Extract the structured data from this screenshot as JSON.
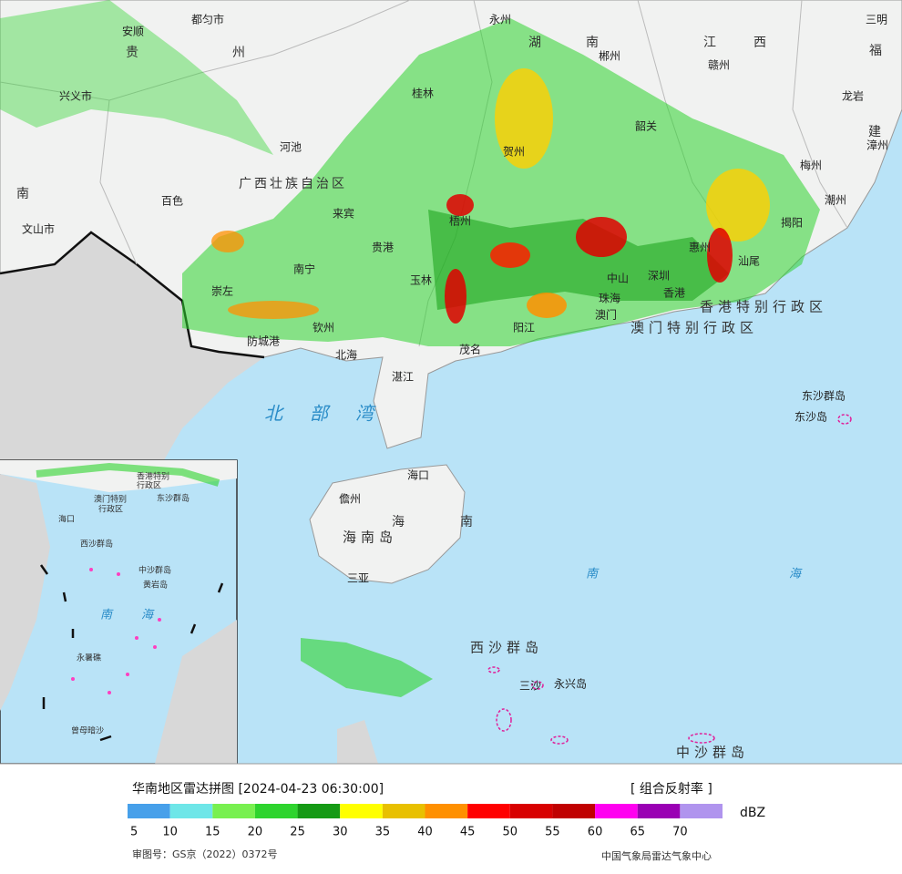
{
  "legend": {
    "title": "华南地区雷达拼图 [2024-04-23 06:30:00]",
    "product": "[ 组合反射率 ]",
    "unit": "dBZ",
    "colors": [
      "#47a0ea",
      "#6ee6e8",
      "#78f050",
      "#2ed42e",
      "#159a15",
      "#ffff00",
      "#e8c000",
      "#ff9000",
      "#ff0000",
      "#d80000",
      "#c00000",
      "#ff00f0",
      "#9a00b4",
      "#b094ee"
    ],
    "ticks": [
      5,
      10,
      15,
      20,
      25,
      30,
      35,
      40,
      45,
      50,
      55,
      60,
      65,
      70
    ]
  },
  "footer": {
    "approval": "审图号：GS京（2022）0372号",
    "source": "中国气象局雷达气象中心"
  },
  "map": {
    "labels": [
      "都匀市",
      "安顺",
      "贵",
      "州",
      "永州",
      "湖",
      "南",
      "郴州",
      "江",
      "西",
      "赣州",
      "三明",
      "福",
      "龙岩",
      "建",
      "漳州",
      "梅州",
      "潮州",
      "揭阳",
      "汕尾",
      "韶关",
      "桂林",
      "兴义市",
      "河池",
      "贺州",
      "百色",
      "广西壮族自治区",
      "南",
      "文山市",
      "梧州",
      "来宾",
      "贵港",
      "南宁",
      "玉林",
      "崇左",
      "钦州",
      "防城港",
      "北海",
      "茂名",
      "阳江",
      "湛江",
      "惠州",
      "深圳",
      "中山",
      "珠海",
      "澳门",
      "香港",
      "香港特别行政区",
      "澳门特别行政区",
      "东沙群岛",
      "东沙岛",
      "北部湾",
      "海口",
      "儋州",
      "海南岛",
      "海",
      "南",
      "三亚",
      "南",
      "海",
      "西沙群岛",
      "三沙",
      "永兴岛",
      "中沙群岛"
    ],
    "inset_labels": [
      "香港特别",
      "行政区",
      "澳门特别",
      "行政区",
      "东沙群岛",
      "海口",
      "西沙群岛",
      "中沙群岛",
      "黄岩岛",
      "南",
      "海",
      "永暑礁",
      "曾母暗沙"
    ]
  }
}
